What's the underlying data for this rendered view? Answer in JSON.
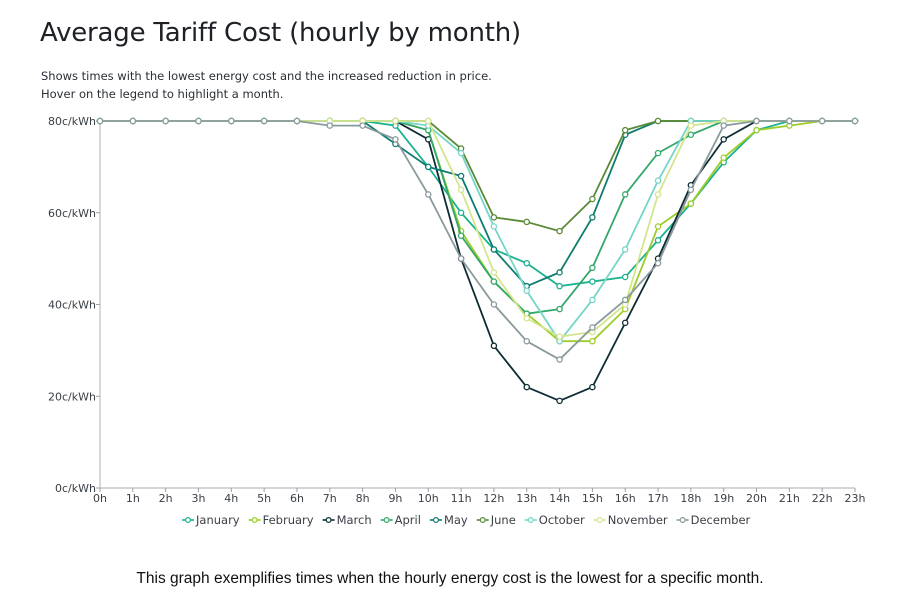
{
  "header": {
    "title": "Average Tariff Cost (hourly by month)",
    "subtitle_line1": "Shows times with the lowest energy cost and the increased reduction in price.",
    "subtitle_line2": "Hover on the legend to highlight a month."
  },
  "caption": "This graph exemplifies times when the hourly energy cost is the lowest for a specific month.",
  "chart_data": {
    "type": "line",
    "title": "Average Tariff Cost (hourly by month)",
    "xlabel": "",
    "ylabel": "",
    "x": [
      "0h",
      "1h",
      "2h",
      "3h",
      "4h",
      "5h",
      "6h",
      "7h",
      "8h",
      "9h",
      "10h",
      "11h",
      "12h",
      "13h",
      "14h",
      "15h",
      "16h",
      "17h",
      "18h",
      "19h",
      "20h",
      "21h",
      "22h",
      "23h"
    ],
    "yticks": [
      0,
      20,
      40,
      60,
      80
    ],
    "ytick_labels": [
      "0c/kWh",
      "20c/kWh",
      "40c/kWh",
      "60c/kWh",
      "80c/kWh"
    ],
    "ylim": [
      0,
      80
    ],
    "grid": false,
    "legend_position": "bottom",
    "series": [
      {
        "name": "January",
        "color": "#1bb28f",
        "values": [
          80,
          80,
          80,
          80,
          80,
          80,
          80,
          80,
          80,
          79,
          70,
          60,
          52,
          49,
          44,
          45,
          46,
          54,
          62,
          71,
          78,
          80,
          80,
          80
        ]
      },
      {
        "name": "February",
        "color": "#9ccd2c",
        "values": [
          80,
          80,
          80,
          80,
          80,
          80,
          80,
          80,
          80,
          80,
          78,
          56,
          45,
          38,
          32,
          32,
          39,
          57,
          62,
          72,
          78,
          79,
          80,
          80
        ]
      },
      {
        "name": "March",
        "color": "#0d2d33",
        "values": [
          80,
          80,
          80,
          80,
          80,
          80,
          80,
          80,
          80,
          80,
          76,
          50,
          31,
          22,
          19,
          22,
          36,
          50,
          66,
          76,
          80,
          80,
          80,
          80
        ]
      },
      {
        "name": "April",
        "color": "#33a86a",
        "values": [
          80,
          80,
          80,
          80,
          80,
          80,
          80,
          80,
          80,
          80,
          78,
          55,
          45,
          38,
          39,
          48,
          64,
          73,
          77,
          80,
          80,
          80,
          80,
          80
        ]
      },
      {
        "name": "May",
        "color": "#0e7c71",
        "values": [
          80,
          80,
          80,
          80,
          80,
          80,
          80,
          80,
          80,
          75,
          70,
          68,
          52,
          44,
          47,
          59,
          77,
          80,
          80,
          80,
          80,
          80,
          80,
          80
        ]
      },
      {
        "name": "June",
        "color": "#5a8a36",
        "values": [
          80,
          80,
          80,
          80,
          80,
          80,
          80,
          80,
          80,
          80,
          80,
          74,
          59,
          58,
          56,
          63,
          78,
          80,
          80,
          80,
          80,
          80,
          80,
          80
        ]
      },
      {
        "name": "October",
        "color": "#74d6c7",
        "values": [
          80,
          80,
          80,
          80,
          80,
          80,
          80,
          80,
          80,
          80,
          79,
          73,
          57,
          43,
          32,
          41,
          52,
          67,
          80,
          80,
          80,
          80,
          80,
          80
        ]
      },
      {
        "name": "November",
        "color": "#d4e58c",
        "values": [
          80,
          80,
          80,
          80,
          80,
          80,
          80,
          80,
          80,
          80,
          80,
          65,
          47,
          37,
          33,
          34,
          40,
          64,
          79,
          80,
          80,
          80,
          80,
          80
        ]
      },
      {
        "name": "December",
        "color": "#8a9a9c",
        "values": [
          80,
          80,
          80,
          80,
          80,
          80,
          80,
          79,
          79,
          76,
          64,
          50,
          40,
          32,
          28,
          35,
          41,
          49,
          65,
          79,
          80,
          80,
          80,
          80
        ]
      }
    ]
  }
}
